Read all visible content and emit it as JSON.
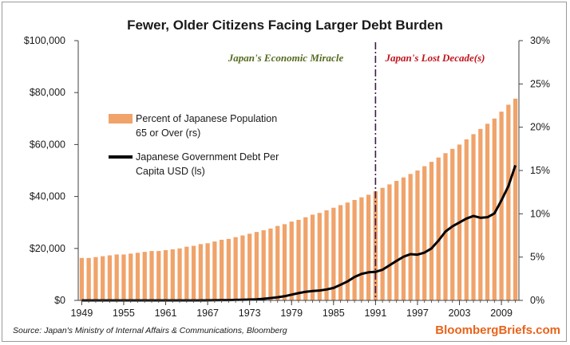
{
  "chart_data": {
    "type": "bar+line",
    "title": "Fewer, Older Citizens Facing Larger Debt Burden",
    "x": [
      1949,
      1950,
      1951,
      1952,
      1953,
      1954,
      1955,
      1956,
      1957,
      1958,
      1959,
      1960,
      1961,
      1962,
      1963,
      1964,
      1965,
      1966,
      1967,
      1968,
      1969,
      1970,
      1971,
      1972,
      1973,
      1974,
      1975,
      1976,
      1977,
      1978,
      1979,
      1980,
      1981,
      1982,
      1983,
      1984,
      1985,
      1986,
      1987,
      1988,
      1989,
      1990,
      1991,
      1992,
      1993,
      1994,
      1995,
      1996,
      1997,
      1998,
      1999,
      2000,
      2001,
      2002,
      2003,
      2004,
      2005,
      2006,
      2007,
      2008,
      2009,
      2010,
      2011
    ],
    "x_tick_labels": [
      "1949",
      "1955",
      "1961",
      "1967",
      "1973",
      "1979",
      "1985",
      "1991",
      "1997",
      "2003",
      "2009"
    ],
    "x_tick_values": [
      1949,
      1955,
      1961,
      1967,
      1973,
      1979,
      1985,
      1991,
      1997,
      2003,
      2009
    ],
    "series": [
      {
        "name": "Percent of Japanese Population 65 or Over (rs)",
        "axis": "right",
        "style": "bar",
        "values": [
          4.9,
          4.9,
          5.0,
          5.1,
          5.2,
          5.3,
          5.3,
          5.4,
          5.5,
          5.6,
          5.7,
          5.7,
          5.8,
          5.9,
          6.0,
          6.2,
          6.3,
          6.5,
          6.6,
          6.8,
          7.0,
          7.1,
          7.3,
          7.5,
          7.7,
          7.9,
          8.1,
          8.3,
          8.6,
          8.8,
          9.1,
          9.3,
          9.6,
          9.9,
          10.1,
          10.4,
          10.7,
          11.0,
          11.3,
          11.6,
          11.9,
          12.2,
          12.6,
          13.0,
          13.4,
          13.8,
          14.2,
          14.6,
          15.0,
          15.5,
          16.0,
          16.5,
          17.0,
          17.5,
          18.0,
          18.6,
          19.2,
          19.8,
          20.4,
          21.0,
          21.8,
          22.6,
          23.3
        ]
      },
      {
        "name": "Japanese Government Debt Per Capita USD (ls)",
        "axis": "left",
        "style": "line",
        "values": [
          0,
          0,
          0,
          0,
          0,
          0,
          0,
          0,
          0,
          0,
          0,
          0,
          0,
          0,
          0,
          0,
          0,
          0,
          50,
          80,
          100,
          120,
          200,
          250,
          300,
          400,
          600,
          900,
          1200,
          1600,
          2200,
          2800,
          3300,
          3600,
          3800,
          4200,
          4800,
          6000,
          7300,
          9000,
          10200,
          10800,
          11000,
          11800,
          13500,
          15200,
          16800,
          17800,
          17600,
          18400,
          20000,
          23000,
          26500,
          28500,
          30000,
          31500,
          32500,
          31800,
          32000,
          33500,
          38500,
          44000,
          52000
        ]
      }
    ],
    "ylim_left": [
      0,
      100000
    ],
    "ylim_right": [
      0,
      30
    ],
    "y_left_tick_labels": [
      "$0",
      "$20,000",
      "$40,000",
      "$60,000",
      "$80,000",
      "$100,000"
    ],
    "y_right_tick_labels": [
      "0%",
      "5%",
      "10%",
      "15%",
      "20%",
      "25%",
      "30%"
    ],
    "divider_year": 1991,
    "annotations": [
      {
        "text": "Japan's Economic Miracle",
        "color": "#556b1f"
      },
      {
        "text": "Japan's Lost Decade(s)",
        "color": "#c0141b"
      }
    ],
    "legend": {
      "bar_label_line1": "Percent of Japanese Population",
      "bar_label_line2": "65 or Over (rs)",
      "line_label_line1": "Japanese Government Debt Per",
      "line_label_line2": "Capita USD (ls)"
    },
    "source": "Source: Japan's Ministry of Internal Affairs & Communications, Bloomberg",
    "brand": "BloombergBriefs.com",
    "colors": {
      "bar": "#f0a36a",
      "line": "#000000",
      "divider": "#3b1d4a",
      "brand": "#e8631a",
      "axis": "#404040"
    }
  }
}
